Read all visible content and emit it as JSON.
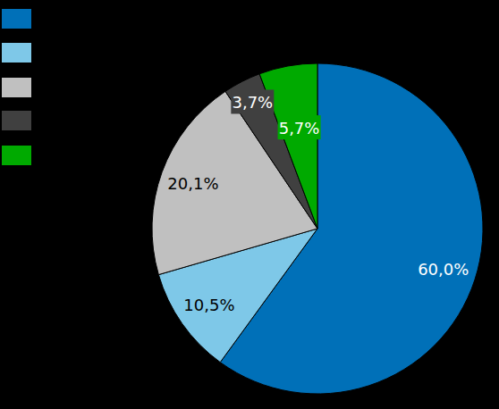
{
  "chart_data": {
    "type": "pie",
    "values": [
      60.0,
      10.5,
      20.1,
      3.7,
      5.7
    ],
    "value_labels": [
      "60,0%",
      "10,5%",
      "20,1%",
      "3,7%",
      "5,7%"
    ],
    "colors": [
      "#0070b8",
      "#7ec8e8",
      "#c0c0c0",
      "#404040",
      "#00aa00"
    ],
    "data_labels": true,
    "legend": "top-left"
  }
}
